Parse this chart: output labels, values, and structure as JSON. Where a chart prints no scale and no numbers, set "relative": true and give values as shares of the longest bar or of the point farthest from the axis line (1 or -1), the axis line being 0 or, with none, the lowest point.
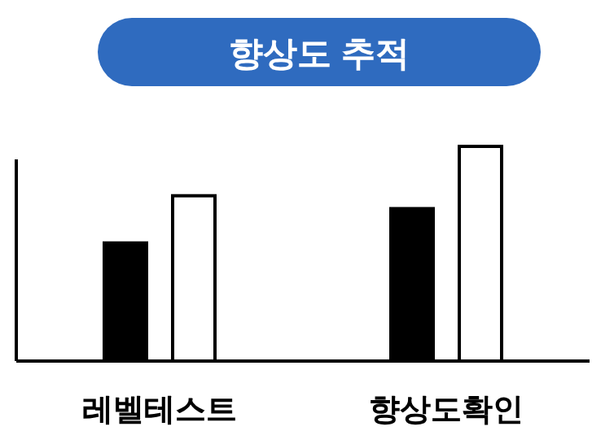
{
  "chart_data": {
    "type": "bar",
    "title": "향상도 추적",
    "relative": true,
    "categories": [
      "레벨테스트",
      "향상도확인"
    ],
    "series": [
      {
        "color": "#000000",
        "values": [
          0.55,
          0.71
        ]
      },
      {
        "color": "#ffffff",
        "values": [
          0.77,
          1
        ]
      }
    ]
  }
}
